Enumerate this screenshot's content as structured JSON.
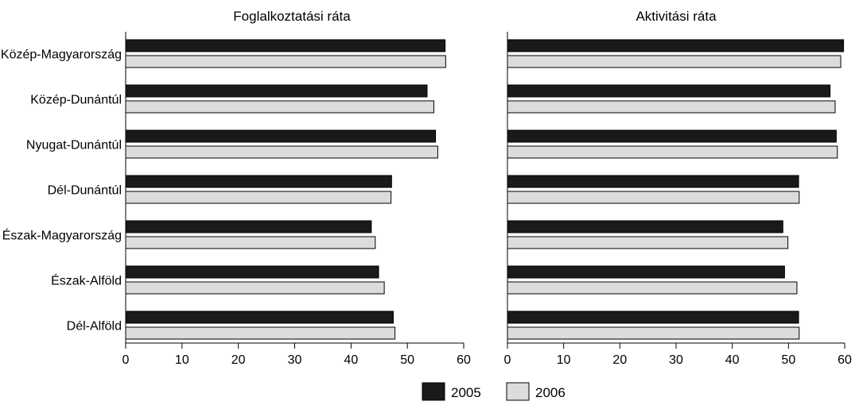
{
  "chart_data": [
    {
      "type": "bar",
      "orientation": "horizontal",
      "title": "Foglalkoztatási ráta",
      "categories": [
        "Közép-Magyarország",
        "Közép-Dunántúl",
        "Nyugat-Dunántúl",
        "Dél-Dunántúl",
        "Észak-Magyarország",
        "Észak-Alföld",
        "Dél-Alföld"
      ],
      "series": [
        {
          "name": "2005",
          "values": [
            56.7,
            53.5,
            55.0,
            47.2,
            43.6,
            44.9,
            47.5
          ]
        },
        {
          "name": "2006",
          "values": [
            56.8,
            54.7,
            55.4,
            47.1,
            44.3,
            45.9,
            47.8
          ]
        }
      ],
      "xlim": [
        0,
        60
      ],
      "xticks": [
        0,
        10,
        20,
        30,
        40,
        50,
        60
      ]
    },
    {
      "type": "bar",
      "orientation": "horizontal",
      "title": "Aktivitási ráta",
      "categories": [
        "Közép-Magyarország",
        "Közép-Dunántúl",
        "Nyugat-Dunántúl",
        "Dél-Dunántúl",
        "Észak-Magyarország",
        "Észak-Alföld",
        "Dél-Alföld"
      ],
      "series": [
        {
          "name": "2005",
          "values": [
            59.8,
            57.4,
            58.5,
            51.8,
            49.0,
            49.3,
            51.8
          ]
        },
        {
          "name": "2006",
          "values": [
            59.3,
            58.3,
            58.7,
            51.9,
            49.9,
            51.5,
            51.9
          ]
        }
      ],
      "xlim": [
        0,
        60
      ],
      "xticks": [
        0,
        10,
        20,
        30,
        40,
        50,
        60
      ]
    }
  ],
  "legend": [
    {
      "label": "2005",
      "color": "#1a1a1a"
    },
    {
      "label": "2006",
      "color": "#dcdcdc"
    }
  ],
  "colors": {
    "series_2005": "#1a1a1a",
    "series_2006": "#dcdcdc",
    "bar_stroke": "#000000"
  }
}
